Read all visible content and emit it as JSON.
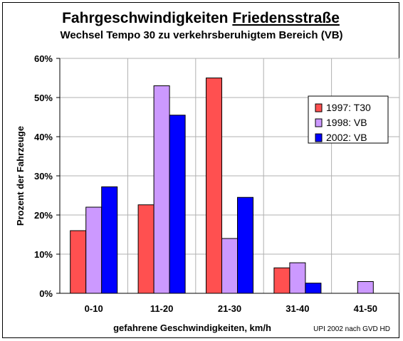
{
  "chart_data": {
    "type": "bar",
    "title_prefix": "Fahrgeschwindigkeiten ",
    "title_underlined": "Friedensstraße",
    "subtitle": "Wechsel Tempo 30 zu verkehrsberuhigtem Bereich (VB)",
    "xlabel": "gefahrene Geschwindigkeiten, km/h",
    "ylabel": "Prozent der Fahrzeuge",
    "credit": "UPI 2002 nach GVD HD",
    "categories": [
      "0-10",
      "11-20",
      "21-30",
      "31-40",
      "41-50"
    ],
    "ylim": [
      0,
      60
    ],
    "yticks": [
      {
        "value": 0,
        "label": "0%"
      },
      {
        "value": 10,
        "label": "10%"
      },
      {
        "value": 20,
        "label": "20%"
      },
      {
        "value": 30,
        "label": "30%"
      },
      {
        "value": 40,
        "label": "40%"
      },
      {
        "value": 50,
        "label": "50%"
      },
      {
        "value": 60,
        "label": "60%"
      }
    ],
    "grid": true,
    "legend_position": "right",
    "series": [
      {
        "name": "1997: T30",
        "color": "#ff5050",
        "values": [
          16,
          22.6,
          55,
          6.5,
          null
        ]
      },
      {
        "name": "1998: VB",
        "color": "#cc99ff",
        "values": [
          22,
          53,
          14,
          7.8,
          3
        ]
      },
      {
        "name": "2002: VB",
        "color": "#0000ff",
        "values": [
          27.2,
          45.5,
          24.5,
          2.6,
          null
        ]
      }
    ]
  }
}
